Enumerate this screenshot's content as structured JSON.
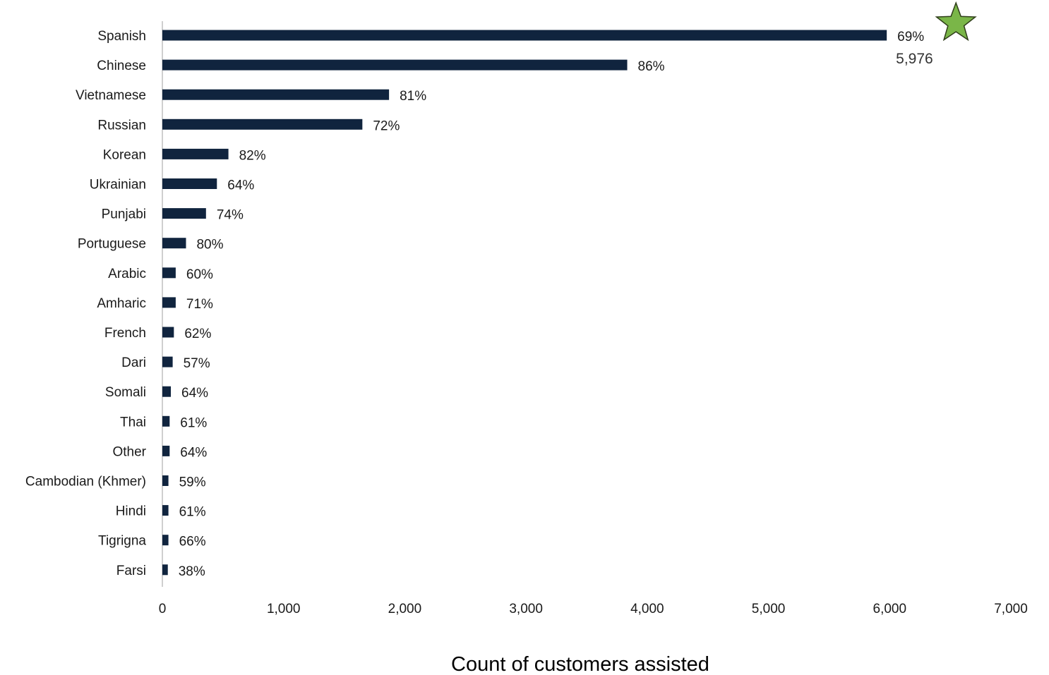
{
  "chart_data": {
    "type": "bar",
    "orientation": "horizontal",
    "categories": [
      "Spanish",
      "Chinese",
      "Vietnamese",
      "Russian",
      "Korean",
      "Ukrainian",
      "Punjabi",
      "Portuguese",
      "Arabic",
      "Amharic",
      "French",
      "Dari",
      "Somali",
      "Thai",
      "Other",
      "Cambodian (Khmer)",
      "Hindi",
      "Tigrigna",
      "Farsi"
    ],
    "values": [
      5976,
      3835,
      1870,
      1650,
      545,
      450,
      360,
      195,
      110,
      110,
      95,
      85,
      70,
      60,
      60,
      50,
      50,
      50,
      45
    ],
    "data_labels": [
      "69%",
      "86%",
      "81%",
      "72%",
      "82%",
      "64%",
      "74%",
      "80%",
      "60%",
      "71%",
      "62%",
      "57%",
      "64%",
      "61%",
      "64%",
      "59%",
      "61%",
      "66%",
      "38%"
    ],
    "bar_color": "#10243e",
    "xlabel": "Count of customers assisted",
    "ylabel": "",
    "xlim": [
      0,
      7000
    ],
    "xticks": [
      0,
      1000,
      2000,
      3000,
      4000,
      5000,
      6000,
      7000
    ],
    "xtick_labels": [
      "0",
      "1,000",
      "2,000",
      "3,000",
      "4,000",
      "5,000",
      "6,000",
      "7,000"
    ],
    "grid": false,
    "annotations": [
      {
        "category": "Spanish",
        "text": "5,976",
        "marker": "star",
        "marker_color": "#7ab648"
      }
    ]
  }
}
